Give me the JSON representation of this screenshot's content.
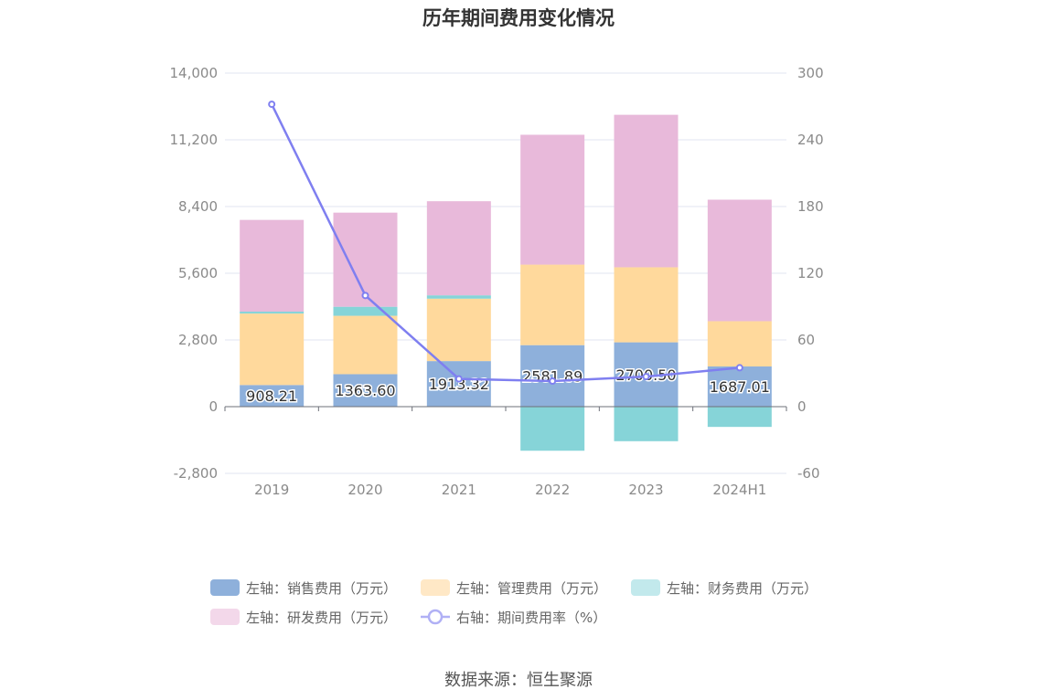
{
  "title": "历年期间费用变化情况",
  "source": "数据来源：恒生聚源",
  "chart_data": {
    "type": "bar",
    "stacked": true,
    "categories": [
      "2019",
      "2020",
      "2021",
      "2022",
      "2023",
      "2024H1"
    ],
    "y_left": {
      "min": -2800,
      "max": 14000,
      "ticks": [
        -2800,
        0,
        2800,
        5600,
        8400,
        11200,
        14000
      ],
      "tick_labels": [
        "-2,800",
        "0",
        "2,800",
        "5,600",
        "8,400",
        "11,200",
        "14,000"
      ]
    },
    "y_right": {
      "min": -60,
      "max": 300,
      "ticks": [
        -60,
        0,
        60,
        120,
        180,
        240,
        300
      ],
      "tick_labels": [
        "-60",
        "0",
        "60",
        "120",
        "180",
        "240",
        "300"
      ]
    },
    "grid": true,
    "legend_position": "bottom",
    "series": [
      {
        "name": "左轴：销售费用（万元）",
        "axis": "left",
        "type": "bar",
        "color": "#8eb0db",
        "legend_color": "#8eb0db",
        "values": [
          908.21,
          1363.6,
          1913.32,
          2581.89,
          2700.5,
          1687.01
        ],
        "data_labels": [
          "908.21",
          "1363.60",
          "1913.32",
          "2581.89",
          "2700.50",
          "1687.01"
        ]
      },
      {
        "name": "左轴：管理费用（万元）",
        "axis": "left",
        "type": "bar",
        "color": "#ffd99c",
        "legend_color": "#ffe8c6",
        "values": [
          3000,
          2450,
          2620,
          3380,
          3150,
          1900
        ]
      },
      {
        "name": "左轴：财务费用（万元）",
        "axis": "left",
        "type": "bar",
        "color": "#86d4d8",
        "legend_color": "#c2e9ec",
        "values": [
          80,
          380,
          140,
          -1850,
          -1450,
          -850
        ]
      },
      {
        "name": "左轴：研发费用（万元）",
        "axis": "left",
        "type": "bar",
        "color": "#e8b9da",
        "legend_color": "#f3d8ea",
        "values": [
          3850,
          3950,
          3950,
          5450,
          6400,
          5100
        ]
      },
      {
        "name": "右轴：期间费用率（%）",
        "axis": "right",
        "type": "line",
        "color": "#7f7ff0",
        "legend_color": "#b0b0f5",
        "values": [
          272,
          100,
          25,
          23,
          27,
          35
        ]
      }
    ]
  }
}
